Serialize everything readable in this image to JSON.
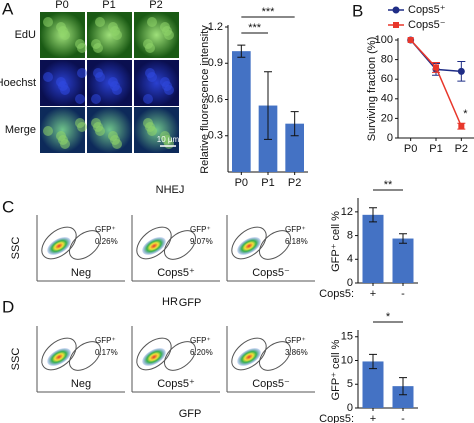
{
  "panel_labels": [
    "A",
    "B",
    "C",
    "D"
  ],
  "micrographs": {
    "columns": [
      "P0",
      "P1",
      "P2"
    ],
    "rows": [
      "EdU",
      "Hoechst",
      "Merge"
    ],
    "scale_bar": "10 μm"
  },
  "flow": [
    {
      "title": "NHEJ",
      "y_label": "SSC",
      "x_label": "GFP",
      "plots": [
        {
          "gate": "GFP⁺",
          "percent": "0.26%",
          "label": "Neg"
        },
        {
          "gate": "GFP⁺",
          "percent": "9.07%",
          "label": "Cops5⁺"
        },
        {
          "gate": "GFP⁺",
          "percent": "6.18%",
          "label": "Cops5⁻"
        }
      ]
    },
    {
      "title": "HR",
      "y_label": "SSC",
      "x_label": "GFP",
      "plots": [
        {
          "gate": "GFP⁺",
          "percent": "0.17%",
          "label": "Neg"
        },
        {
          "gate": "GFP⁺",
          "percent": "6.20%",
          "label": "Cops5⁺"
        },
        {
          "gate": "GFP⁺",
          "percent": "3.86%",
          "label": "Cops5⁻"
        }
      ]
    }
  ],
  "chart_data": [
    {
      "type": "bar",
      "y_label": "Relative fluorescence intensity",
      "categories": [
        "P0",
        "P1",
        "P2"
      ],
      "values": [
        1.0,
        0.55,
        0.4
      ],
      "errors": [
        0.05,
        0.28,
        0.1
      ],
      "color": "#4472c4",
      "ylim": [
        0,
        1.2
      ],
      "yticks": [
        0.3,
        0.6,
        0.9,
        1.2
      ],
      "significance": [
        "***",
        "***"
      ]
    },
    {
      "type": "line",
      "y_label": "Surviving fraction (%)",
      "categories": [
        "P0",
        "P1",
        "P2"
      ],
      "series": [
        {
          "name": "Cops5⁺",
          "color": "#1f2d86",
          "values": [
            100,
            70,
            68
          ],
          "errors": [
            null,
            6,
            10
          ]
        },
        {
          "name": "Cops5⁻",
          "color": "#e8372b",
          "values": [
            100,
            72,
            12
          ],
          "errors": [
            null,
            5,
            3
          ]
        }
      ],
      "ylim": [
        0,
        100
      ],
      "yticks": [
        0,
        20,
        40,
        60,
        80,
        100
      ],
      "significance": [
        "*"
      ]
    },
    {
      "type": "bar",
      "y_label": "GFP⁺ cell %",
      "x_label": "Cops5:",
      "categories": [
        "+",
        "-"
      ],
      "values": [
        11.5,
        7.5
      ],
      "errors": [
        1.2,
        0.8
      ],
      "color": "#4472c4",
      "ylim": [
        0,
        14
      ],
      "yticks": [
        0,
        4,
        8,
        12
      ],
      "significance": [
        "**"
      ]
    },
    {
      "type": "bar",
      "y_label": "GFP⁺ cell %",
      "x_label": "Cops5:",
      "categories": [
        "+",
        "-"
      ],
      "values": [
        9.8,
        4.6
      ],
      "errors": [
        1.5,
        1.8
      ],
      "color": "#4472c4",
      "ylim": [
        0,
        16
      ],
      "yticks": [
        0,
        5,
        10,
        15
      ],
      "significance": [
        "*"
      ]
    }
  ]
}
